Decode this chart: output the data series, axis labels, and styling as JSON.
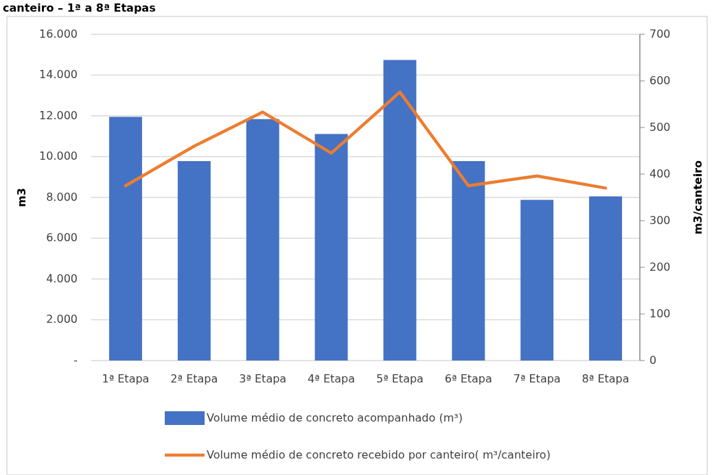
{
  "chart_data": {
    "type": "bar",
    "title": "canteiro – 1ª a 8ª Etapas",
    "categories": [
      "1ª Etapa",
      "2ª Etapa",
      "3ª Etapa",
      "4ª Etapa",
      "5ª Etapa",
      "6ª Etapa",
      "7ª Etapa",
      "8ª Etapa"
    ],
    "series": [
      {
        "name": "Volume médio de concreto acompanhado (m³)",
        "color": "#4472c4",
        "values": [
          11950,
          9780,
          11840,
          11110,
          14740,
          9780,
          7880,
          8050
        ]
      },
      {
        "name": "Volume médio de concreto recebido por canteiro( m³/canteiro)",
        "color": "#ed7d31",
        "type": "line",
        "axis": "y2",
        "values": [
          375,
          460,
          533,
          445,
          576,
          375,
          396,
          370
        ]
      }
    ],
    "ylabel": "m3",
    "y2label": "m3/canteiro",
    "ylim": [
      0,
      16000
    ],
    "yticks": [
      {
        "value": 0,
        "label": "-"
      },
      {
        "value": 2000,
        "label": "2.000"
      },
      {
        "value": 4000,
        "label": "4.000"
      },
      {
        "value": 6000,
        "label": "6.000"
      },
      {
        "value": 8000,
        "label": "8.000"
      },
      {
        "value": 10000,
        "label": "10.000"
      },
      {
        "value": 12000,
        "label": "12.000"
      },
      {
        "value": 14000,
        "label": "14.000"
      },
      {
        "value": 16000,
        "label": "16.000"
      }
    ],
    "y2lim": [
      0,
      700
    ],
    "y2ticks": [
      0,
      100,
      200,
      300,
      400,
      500,
      600,
      700
    ],
    "grid": "y",
    "legend": "bottom",
    "marker": "none"
  }
}
